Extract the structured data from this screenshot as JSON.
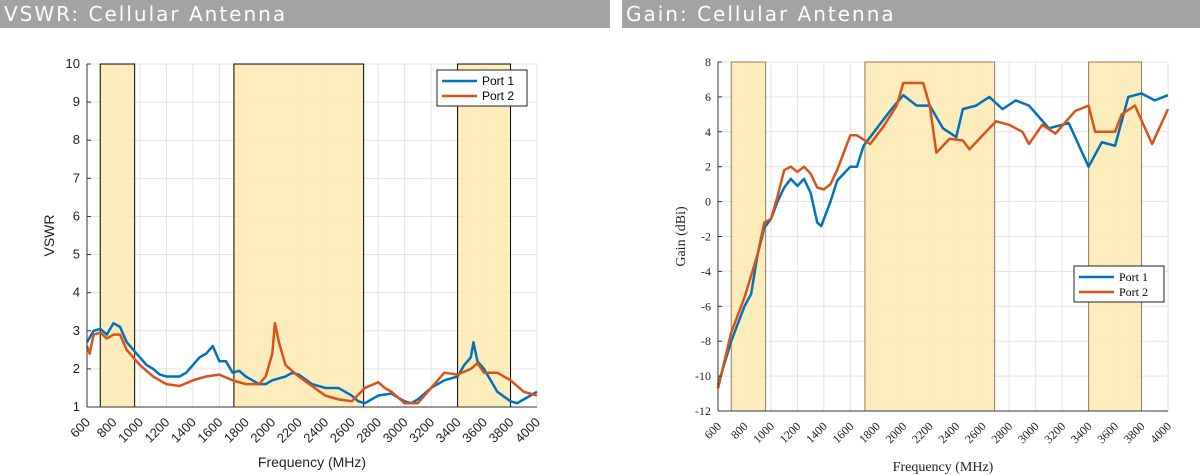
{
  "headers": [
    "VSWR: Cellular Antenna",
    "Gain: Cellular Antenna"
  ],
  "colors": {
    "port1": "#0072bd",
    "port2": "#d95319",
    "band": "#fde9b0"
  },
  "chart_data": [
    {
      "type": "line",
      "title": "VSWR: Cellular Antenna",
      "xlabel": "Frequency (MHz)",
      "ylabel": "VSWR",
      "xlim": [
        600,
        4000
      ],
      "ylim": [
        1,
        10
      ],
      "xticks": [
        600,
        800,
        1000,
        1200,
        1400,
        1600,
        1800,
        2000,
        2200,
        2400,
        2600,
        2800,
        3000,
        3200,
        3400,
        3600,
        3800,
        4000
      ],
      "yticks": [
        1,
        2,
        3,
        4,
        5,
        6,
        7,
        8,
        9,
        10
      ],
      "grid": true,
      "legend": "top-right",
      "bands": [
        [
          700,
          960
        ],
        [
          1710,
          2690
        ],
        [
          3400,
          3800
        ]
      ],
      "series": [
        {
          "name": "Port 1",
          "x": [
            600,
            650,
            700,
            750,
            800,
            850,
            900,
            950,
            1000,
            1050,
            1100,
            1150,
            1200,
            1300,
            1350,
            1400,
            1450,
            1500,
            1550,
            1600,
            1650,
            1700,
            1750,
            1800,
            1850,
            1900,
            1950,
            2000,
            2100,
            2150,
            2200,
            2300,
            2400,
            2500,
            2600,
            2650,
            2700,
            2800,
            2900,
            3000,
            3050,
            3100,
            3200,
            3300,
            3400,
            3450,
            3500,
            3520,
            3550,
            3600,
            3650,
            3700,
            3800,
            3850,
            3900,
            3950,
            4000
          ],
          "y": [
            2.7,
            3.0,
            3.05,
            2.9,
            3.2,
            3.1,
            2.7,
            2.5,
            2.3,
            2.1,
            2.0,
            1.85,
            1.8,
            1.8,
            1.9,
            2.1,
            2.3,
            2.4,
            2.6,
            2.2,
            2.2,
            1.9,
            1.95,
            1.8,
            1.7,
            1.6,
            1.6,
            1.7,
            1.8,
            1.9,
            1.85,
            1.6,
            1.5,
            1.5,
            1.3,
            1.15,
            1.1,
            1.3,
            1.35,
            1.15,
            1.1,
            1.2,
            1.5,
            1.7,
            1.8,
            2.1,
            2.3,
            2.7,
            2.2,
            2.0,
            1.7,
            1.4,
            1.15,
            1.1,
            1.2,
            1.3,
            1.4
          ]
        },
        {
          "name": "Port 2",
          "x": [
            600,
            620,
            650,
            700,
            750,
            800,
            850,
            900,
            950,
            1000,
            1100,
            1200,
            1300,
            1400,
            1500,
            1600,
            1700,
            1800,
            1900,
            1950,
            2000,
            2020,
            2050,
            2100,
            2200,
            2300,
            2400,
            2500,
            2600,
            2700,
            2800,
            2850,
            2900,
            3000,
            3100,
            3200,
            3300,
            3400,
            3500,
            3550,
            3600,
            3700,
            3800,
            3900,
            4000
          ],
          "y": [
            2.6,
            2.4,
            2.9,
            2.95,
            2.8,
            2.9,
            2.9,
            2.5,
            2.3,
            2.1,
            1.8,
            1.6,
            1.55,
            1.7,
            1.8,
            1.85,
            1.7,
            1.6,
            1.6,
            1.8,
            2.4,
            3.2,
            2.7,
            2.1,
            1.8,
            1.55,
            1.3,
            1.2,
            1.15,
            1.5,
            1.65,
            1.5,
            1.4,
            1.1,
            1.1,
            1.5,
            1.9,
            1.85,
            2.0,
            2.15,
            1.9,
            1.9,
            1.7,
            1.4,
            1.3
          ]
        }
      ]
    },
    {
      "type": "line",
      "title": "Gain: Cellular Antenna",
      "xlabel": "Frequency (MHz)",
      "ylabel": "Gain (dBi)",
      "xlim": [
        600,
        4000
      ],
      "ylim": [
        -12,
        8
      ],
      "xticks": [
        600,
        800,
        1000,
        1200,
        1400,
        1600,
        1800,
        2000,
        2200,
        2400,
        2600,
        2800,
        3000,
        3200,
        3400,
        3600,
        3800,
        4000
      ],
      "yticks": [
        -12,
        -10,
        -8,
        -6,
        -4,
        -2,
        0,
        2,
        4,
        6,
        8
      ],
      "grid": true,
      "legend": "lower-right",
      "bands": [
        [
          700,
          960
        ],
        [
          1710,
          2690
        ],
        [
          3400,
          3800
        ]
      ],
      "series": [
        {
          "name": "Port 1",
          "x": [
            600,
            700,
            800,
            850,
            900,
            950,
            1000,
            1050,
            1100,
            1150,
            1200,
            1250,
            1300,
            1350,
            1380,
            1450,
            1500,
            1600,
            1650,
            1700,
            1800,
            1900,
            2000,
            2100,
            2200,
            2300,
            2400,
            2450,
            2550,
            2650,
            2750,
            2850,
            2950,
            3100,
            3250,
            3400,
            3500,
            3600,
            3700,
            3800,
            3900,
            4000
          ],
          "y": [
            -10.5,
            -8,
            -6,
            -5.3,
            -3,
            -1.5,
            -1,
            0,
            0.8,
            1.3,
            0.9,
            1.3,
            0.5,
            -1.2,
            -1.4,
            0,
            1.2,
            2,
            2,
            3.2,
            4.2,
            5.2,
            6.1,
            5.5,
            5.5,
            4.2,
            3.7,
            5.3,
            5.5,
            6,
            5.3,
            5.8,
            5.5,
            4.2,
            4.5,
            2,
            3.4,
            3.2,
            6.0,
            6.2,
            5.8,
            6.1
          ]
        },
        {
          "name": "Port 2",
          "x": [
            600,
            700,
            800,
            900,
            950,
            1000,
            1050,
            1100,
            1150,
            1200,
            1250,
            1300,
            1350,
            1400,
            1450,
            1500,
            1600,
            1650,
            1750,
            1850,
            1950,
            2000,
            2150,
            2200,
            2250,
            2350,
            2450,
            2500,
            2600,
            2700,
            2800,
            2900,
            2950,
            3050,
            3150,
            3300,
            3400,
            3450,
            3600,
            3650,
            3750,
            3880,
            4000
          ],
          "y": [
            -10.7,
            -7.5,
            -5.5,
            -3,
            -1.2,
            -1,
            0.3,
            1.8,
            2,
            1.7,
            2,
            1.6,
            0.8,
            0.7,
            1,
            1.8,
            3.8,
            3.8,
            3.3,
            4.3,
            5.5,
            6.8,
            6.8,
            5.5,
            2.8,
            3.6,
            3.5,
            3.0,
            3.8,
            4.6,
            4.4,
            4,
            3.3,
            4.4,
            3.9,
            5.2,
            5.5,
            4,
            4,
            5.0,
            5.5,
            3.3,
            5.3
          ]
        }
      ]
    }
  ]
}
